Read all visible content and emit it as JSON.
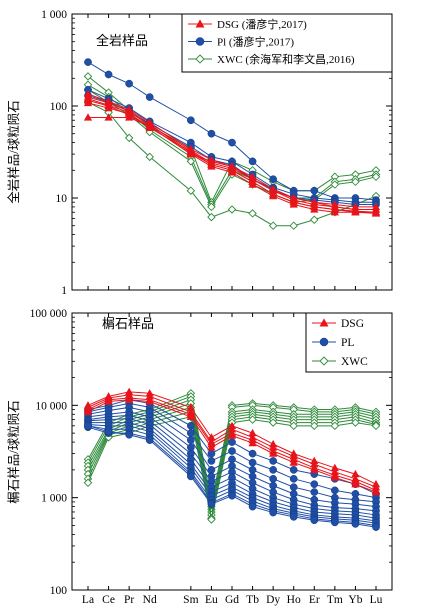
{
  "colors": {
    "dsg": "#e8141b",
    "pl": "#1f4fa8",
    "xwc": "#2e8b3a",
    "axis": "#000000"
  },
  "chart_data": [
    {
      "type": "line",
      "yscale": "log",
      "panel_label": "全岩样品",
      "ylabel": "全岩样品/球粒陨石",
      "ylim": [
        1,
        1000
      ],
      "yticks": [
        "1",
        "10",
        "100",
        "1 000"
      ],
      "categories": [
        "La",
        "Ce",
        "Pr",
        "Nd",
        "Sm",
        "Eu",
        "Gd",
        "Tb",
        "Dy",
        "Ho",
        "Er",
        "Tm",
        "Yb",
        "Lu"
      ],
      "category_positions": [
        0,
        1,
        2,
        3,
        5,
        6,
        7,
        8,
        9,
        10,
        11,
        12,
        13,
        14
      ],
      "legend": {
        "position": "top-right",
        "entries": [
          {
            "label": "DSG (潘彦宁,2017)",
            "series": "DSG"
          },
          {
            "label": "Pl (潘彦宁,2017)",
            "series": "PL"
          },
          {
            "label": "XWC (余海军和李文昌,2016)",
            "series": "XWC"
          }
        ]
      },
      "series": [
        {
          "group": "DSG",
          "values": [
            75,
            75,
            75,
            60,
            30,
            25,
            22,
            16,
            12,
            10,
            9,
            8,
            7.5,
            7.5
          ]
        },
        {
          "group": "DSG",
          "values": [
            115,
            100,
            80,
            58,
            32,
            23,
            20,
            15,
            11,
            9,
            8,
            7.5,
            7,
            7
          ]
        },
        {
          "group": "DSG",
          "values": [
            125,
            108,
            88,
            62,
            33,
            24,
            21,
            16,
            12,
            9.5,
            8.5,
            8,
            7.5,
            7.5
          ]
        },
        {
          "group": "DSG",
          "values": [
            135,
            112,
            92,
            66,
            34,
            26,
            22,
            17,
            12.5,
            10,
            9,
            8.5,
            8,
            8
          ]
        },
        {
          "group": "DSG",
          "values": [
            108,
            95,
            82,
            60,
            30,
            22,
            19,
            14,
            10.5,
            8.5,
            7.5,
            7,
            7,
            6.8
          ]
        },
        {
          "group": "DSG",
          "values": [
            120,
            102,
            85,
            63,
            31,
            23,
            20,
            15,
            11,
            9,
            8,
            7.5,
            7.2,
            7
          ]
        },
        {
          "group": "PL",
          "values": [
            300,
            220,
            175,
            125,
            70,
            50,
            40,
            25,
            16,
            12,
            12,
            10,
            10,
            9.5
          ]
        },
        {
          "group": "PL",
          "values": [
            150,
            120,
            95,
            68,
            40,
            28,
            25,
            18,
            13,
            11,
            10,
            9.5,
            9,
            9
          ]
        },
        {
          "group": "PL",
          "values": [
            130,
            110,
            88,
            64,
            36,
            26,
            23,
            16,
            12.5,
            10,
            9.5,
            9,
            8.5,
            8.5
          ]
        },
        {
          "group": "XWC",
          "values": [
            210,
            140,
            90,
            60,
            35,
            9,
            25,
            20,
            15,
            12,
            12,
            17,
            18,
            20
          ]
        },
        {
          "group": "XWC",
          "values": [
            170,
            125,
            85,
            55,
            28,
            8.5,
            20,
            16,
            12,
            10,
            10,
            15,
            16,
            18
          ]
        },
        {
          "group": "XWC",
          "values": [
            150,
            110,
            80,
            52,
            25,
            8,
            18,
            14,
            11,
            9,
            9.5,
            14,
            15,
            17
          ]
        },
        {
          "group": "XWC",
          "values": [
            110,
            85,
            45,
            28,
            12,
            6.2,
            7.5,
            6.8,
            5,
            5,
            5.8,
            7,
            8.5,
            10.5
          ]
        }
      ]
    },
    {
      "type": "line",
      "yscale": "log",
      "panel_label": "榍石样品",
      "ylabel": "榍石样品/球粒陨石",
      "ylim": [
        100,
        100000
      ],
      "yticks": [
        "100",
        "1 000",
        "10 000",
        "100 000"
      ],
      "xlabels": [
        "La",
        "Ce",
        "Pr",
        "Nd",
        "Sm",
        "Eu",
        "Gd",
        "Tb",
        "Dy",
        "Ho",
        "Er",
        "Tm",
        "Yb",
        "Lu"
      ],
      "category_positions": [
        0,
        1,
        2,
        3,
        5,
        6,
        7,
        8,
        9,
        10,
        11,
        12,
        13,
        14
      ],
      "legend": {
        "position": "top-right",
        "entries": [
          {
            "label": "DSG",
            "series": "DSG"
          },
          {
            "label": "PL",
            "series": "PL"
          },
          {
            "label": "XWC",
            "series": "XWC"
          }
        ]
      },
      "series": [
        {
          "group": "DSG",
          "values": [
            10000,
            12500,
            14000,
            13500,
            9500,
            4500,
            6000,
            5000,
            3800,
            3000,
            2500,
            2100,
            1800,
            1400
          ]
        },
        {
          "group": "DSG",
          "values": [
            9500,
            12000,
            13000,
            12500,
            8500,
            4000,
            5500,
            4500,
            3500,
            2800,
            2300,
            1900,
            1600,
            1300
          ]
        },
        {
          "group": "DSG",
          "values": [
            9000,
            11500,
            12000,
            11500,
            8000,
            3800,
            5000,
            4200,
            3200,
            2600,
            2100,
            1750,
            1500,
            1200
          ]
        },
        {
          "group": "DSG",
          "values": [
            8500,
            11000,
            11500,
            11000,
            7500,
            3500,
            4700,
            3900,
            3000,
            2400,
            2000,
            1650,
            1400,
            1150
          ]
        },
        {
          "group": "PL",
          "values": [
            9000,
            10000,
            11500,
            10500,
            6000,
            3000,
            4000,
            3000,
            2500,
            2000,
            1800,
            1600,
            1400,
            1100
          ]
        },
        {
          "group": "PL",
          "values": [
            8500,
            9500,
            10500,
            9500,
            5000,
            2500,
            3200,
            2400,
            2000,
            1600,
            1400,
            1200,
            1100,
            1000
          ]
        },
        {
          "group": "PL",
          "values": [
            8000,
            8800,
            9500,
            8500,
            4200,
            2000,
            2600,
            2000,
            1600,
            1300,
            1150,
            1000,
            950,
            900
          ]
        },
        {
          "group": "PL",
          "values": [
            7500,
            8000,
            8500,
            7500,
            3500,
            1700,
            2200,
            1700,
            1350,
            1100,
            950,
            880,
            850,
            800
          ]
        },
        {
          "group": "PL",
          "values": [
            7000,
            7500,
            7800,
            6800,
            3000,
            1500,
            1900,
            1450,
            1150,
            950,
            830,
            780,
            760,
            720
          ]
        },
        {
          "group": "PL",
          "values": [
            6800,
            7000,
            7200,
            6200,
            2600,
            1300,
            1650,
            1250,
            1000,
            850,
            760,
            720,
            700,
            650
          ]
        },
        {
          "group": "PL",
          "values": [
            6500,
            6500,
            6500,
            5600,
            2300,
            1150,
            1450,
            1100,
            900,
            780,
            700,
            670,
            650,
            600
          ]
        },
        {
          "group": "PL",
          "values": [
            6200,
            6000,
            6000,
            5200,
            2100,
            1050,
            1300,
            1000,
            820,
            720,
            650,
            620,
            600,
            560
          ]
        },
        {
          "group": "PL",
          "values": [
            6000,
            5500,
            5500,
            4800,
            1900,
            950,
            1200,
            920,
            760,
            680,
            620,
            590,
            570,
            530
          ]
        },
        {
          "group": "PL",
          "values": [
            5800,
            5000,
            5000,
            4400,
            1800,
            880,
            1100,
            850,
            720,
            650,
            590,
            560,
            540,
            500
          ]
        },
        {
          "group": "PL",
          "values": [
            6000,
            5200,
            4800,
            4200,
            1700,
            850,
            1050,
            800,
            690,
            620,
            570,
            540,
            520,
            480
          ]
        },
        {
          "group": "XWC",
          "values": [
            2600,
            6500,
            8000,
            9000,
            13500,
            900,
            10000,
            10500,
            10000,
            9500,
            9000,
            9000,
            9500,
            8500
          ]
        },
        {
          "group": "XWC",
          "values": [
            2400,
            6000,
            7500,
            8500,
            12500,
            800,
            9500,
            10000,
            9500,
            9000,
            8500,
            8500,
            9000,
            8000
          ]
        },
        {
          "group": "XWC",
          "values": [
            2200,
            5500,
            7000,
            8000,
            11500,
            750,
            8500,
            9000,
            8500,
            8000,
            8000,
            8000,
            8500,
            7500
          ]
        },
        {
          "group": "XWC",
          "values": [
            2000,
            5200,
            6500,
            7500,
            10500,
            700,
            8000,
            8500,
            8000,
            7500,
            7500,
            7500,
            8000,
            7000
          ]
        },
        {
          "group": "XWC",
          "values": [
            1800,
            5000,
            6000,
            7000,
            9500,
            650,
            7500,
            8000,
            7500,
            7000,
            7000,
            7000,
            7500,
            6500
          ]
        },
        {
          "group": "XWC",
          "values": [
            1600,
            4800,
            5500,
            6500,
            8500,
            600,
            7000,
            7500,
            7000,
            6500,
            6500,
            6500,
            7000,
            6200
          ]
        },
        {
          "group": "XWC",
          "values": [
            1450,
            4500,
            5000,
            6000,
            7500,
            580,
            6500,
            7000,
            6500,
            6000,
            6000,
            6000,
            6500,
            6000
          ]
        }
      ]
    }
  ]
}
